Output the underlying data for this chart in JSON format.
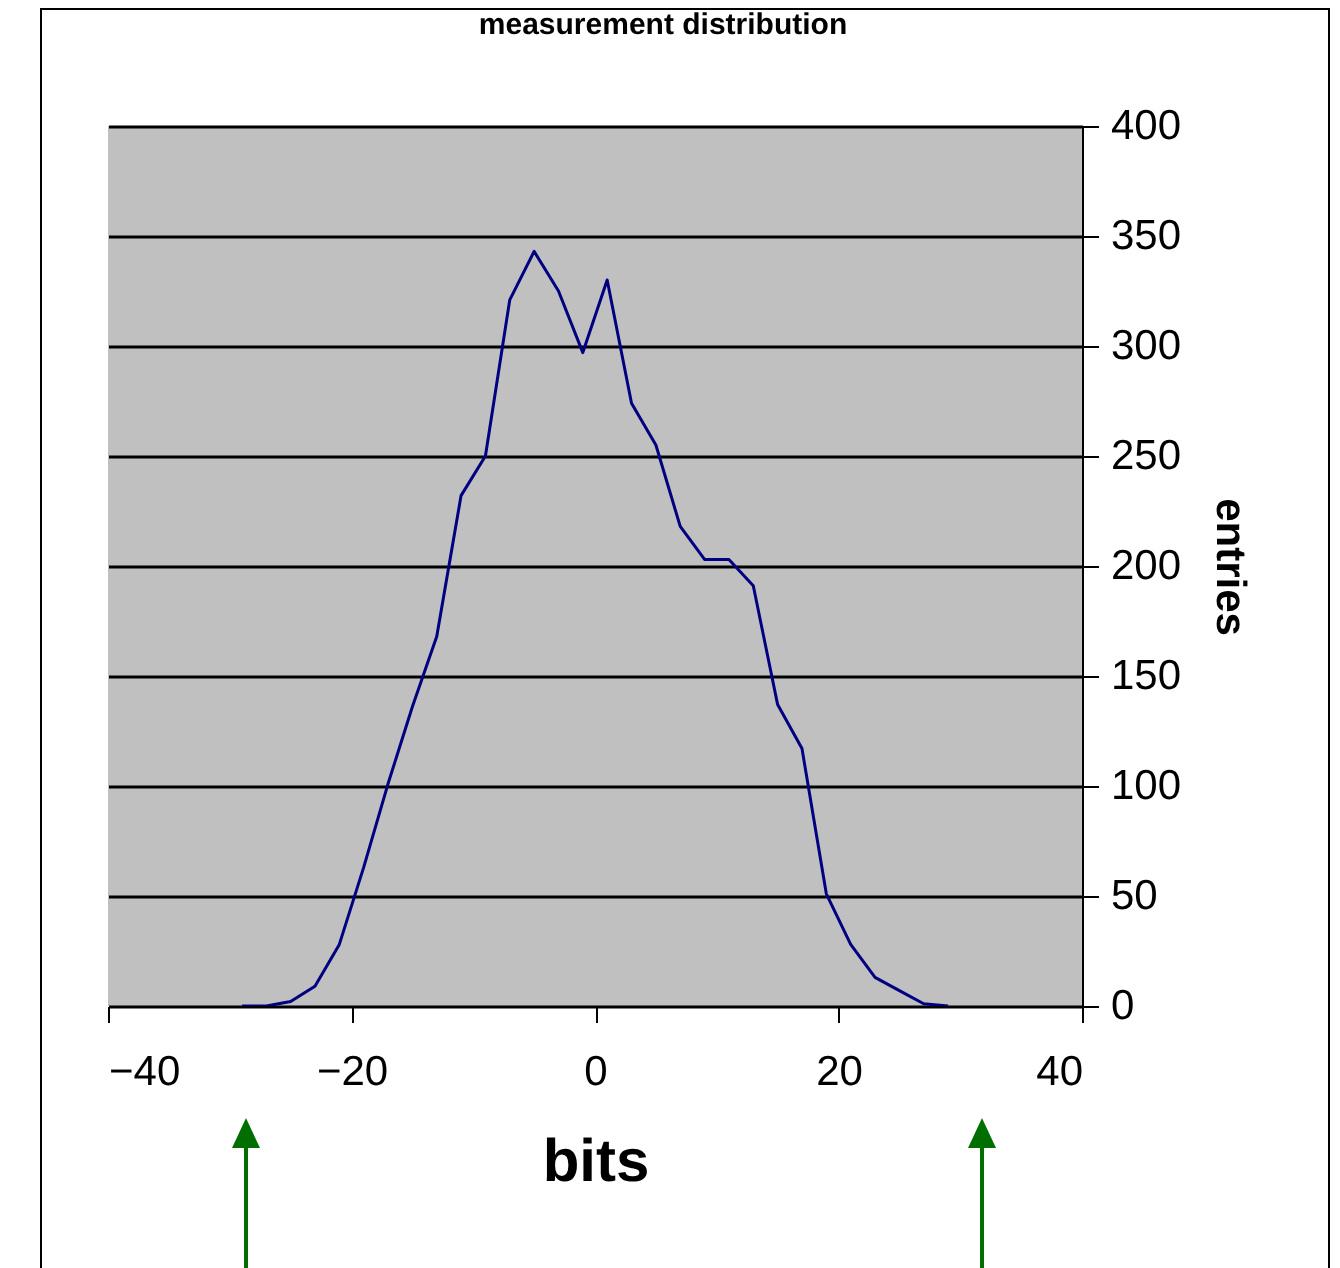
{
  "chart_data": {
    "type": "line",
    "title": "measurement distribution",
    "xlabel": "bits",
    "ylabel": "entries",
    "x": [
      -29,
      -27,
      -25,
      -23,
      -21,
      -19,
      -17,
      -15,
      -13,
      -11,
      -9,
      -7,
      -5,
      -3,
      -1,
      1,
      3,
      5,
      7,
      9,
      11,
      13,
      15,
      17,
      19,
      21,
      23,
      25,
      27,
      29
    ],
    "series": [
      {
        "color": "#000080",
        "values": [
          0,
          0,
          2,
          9,
          28,
          63,
          101,
          136,
          168,
          232,
          250,
          321,
          343,
          325,
          297,
          330,
          274,
          255,
          218,
          203,
          203,
          191,
          137,
          117,
          51,
          28,
          13,
          7,
          1,
          0
        ]
      }
    ],
    "xlim": [
      -40,
      40
    ],
    "xticks": [
      -40,
      -20,
      0,
      20,
      40
    ],
    "ylim": [
      0,
      400
    ],
    "yticks": [
      0,
      50,
      100,
      150,
      200,
      250,
      300,
      350,
      400
    ],
    "grid": "y",
    "marker": "none",
    "line_style": "solid"
  }
}
